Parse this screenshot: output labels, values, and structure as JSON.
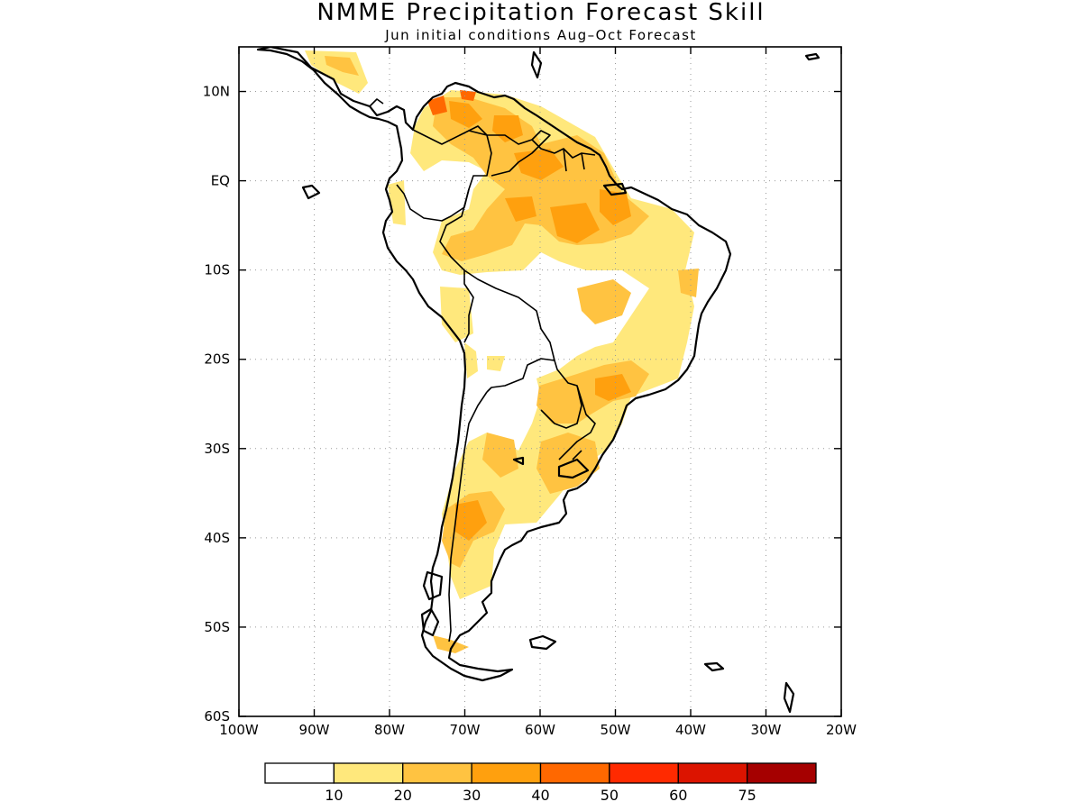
{
  "title": "NMME Precipitation Forecast Skill",
  "subtitle": "Jun initial conditions  Aug–Oct Forecast",
  "map": {
    "lon_range": [
      -100,
      -20
    ],
    "lat_range": [
      -60,
      15
    ],
    "lon_ticks": [
      {
        "value": -100,
        "label": "100W"
      },
      {
        "value": -90,
        "label": "90W"
      },
      {
        "value": -80,
        "label": "80W"
      },
      {
        "value": -70,
        "label": "70W"
      },
      {
        "value": -60,
        "label": "60W"
      },
      {
        "value": -50,
        "label": "50W"
      },
      {
        "value": -40,
        "label": "40W"
      },
      {
        "value": -30,
        "label": "30W"
      },
      {
        "value": -20,
        "label": "20W"
      }
    ],
    "lat_ticks": [
      {
        "value": 10,
        "label": "10N"
      },
      {
        "value": 0,
        "label": "EQ"
      },
      {
        "value": -10,
        "label": "10S"
      },
      {
        "value": -20,
        "label": "20S"
      },
      {
        "value": -30,
        "label": "30S"
      },
      {
        "value": -40,
        "label": "40S"
      },
      {
        "value": -50,
        "label": "50S"
      },
      {
        "value": -60,
        "label": "60S"
      }
    ],
    "gridlines": true
  },
  "colorbar": {
    "colors": [
      "#ffffff",
      "#ffe87c",
      "#ffc341",
      "#ffa00e",
      "#ff6800",
      "#ff2a00",
      "#dc1400",
      "#a50000"
    ],
    "labels": [
      "10",
      "20",
      "30",
      "40",
      "50",
      "60",
      "75"
    ]
  }
}
